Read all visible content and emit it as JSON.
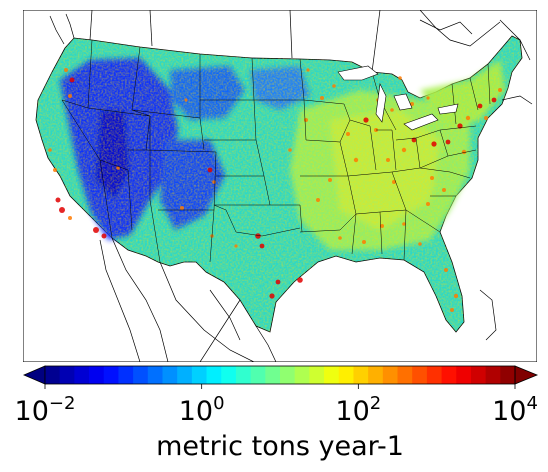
{
  "figure": {
    "colorbar": {
      "label": "metric tons year-1",
      "scale": "log",
      "range": [
        0.01,
        10000
      ],
      "extend": "both",
      "colormap": "jet",
      "ticks": [
        {
          "base": "10",
          "exp": "−2",
          "value": 0.01
        },
        {
          "base": "10",
          "exp": "0",
          "value": 1
        },
        {
          "base": "10",
          "exp": "2",
          "value": 100
        },
        {
          "base": "10",
          "exp": "4",
          "value": 10000
        }
      ],
      "colors": [
        "#000080",
        "#0000c4",
        "#0000ff",
        "#0040ff",
        "#0080ff",
        "#00c0ff",
        "#00ffff",
        "#40ffbf",
        "#80ff80",
        "#bfff40",
        "#ffff00",
        "#ffc000",
        "#ff8000",
        "#ff4000",
        "#ff0000",
        "#c00000",
        "#800000"
      ]
    },
    "map": {
      "region": "Contiguous United States",
      "land_color": "#3fe0d0",
      "low_color": "#0a2cff",
      "high_color": "#e81010"
    }
  }
}
